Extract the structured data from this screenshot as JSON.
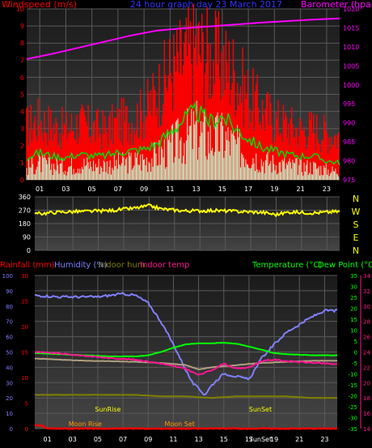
{
  "chart_data": [
    {
      "type": "line",
      "title": "24 hour graph day 23 March 2017",
      "left_axis_label": "Windspeed (m/s)",
      "right_axis_label": "Barometer (hpa)",
      "x_ticks": [
        "01",
        "03",
        "05",
        "07",
        "09",
        "11",
        "13",
        "15",
        "17",
        "19",
        "21",
        "23"
      ],
      "x_range": [
        0,
        24
      ],
      "ylim_left": [
        0,
        10
      ],
      "yticks_left": [
        0,
        1,
        2,
        3,
        4,
        5,
        6,
        7,
        8,
        9,
        10
      ],
      "ylim_right": [
        975,
        1020
      ],
      "yticks_right": [
        975,
        980,
        985,
        990,
        995,
        1000,
        1005,
        1010,
        1015,
        1020
      ],
      "grid": true,
      "series": [
        {
          "name": "Gust",
          "color": "#ff0000",
          "axis": "left",
          "x": [
            0,
            1,
            2,
            3,
            4,
            5,
            6,
            7,
            8,
            9,
            10,
            11,
            12,
            13,
            14,
            15,
            16,
            17,
            18,
            19,
            20,
            21,
            22,
            23,
            24
          ],
          "values": [
            3.2,
            3.6,
            3.2,
            3.0,
            3.4,
            3.1,
            3.0,
            3.4,
            3.6,
            4.0,
            5.2,
            6.5,
            7.2,
            8.0,
            7.4,
            7.0,
            6.4,
            5.0,
            4.2,
            3.6,
            3.3,
            3.0,
            3.1,
            2.8,
            2.6
          ]
        },
        {
          "name": "Average speed",
          "color": "#00dd00",
          "axis": "left",
          "x": [
            0,
            1,
            2,
            3,
            4,
            5,
            6,
            7,
            8,
            9,
            10,
            11,
            12,
            13,
            14,
            15,
            16,
            17,
            18,
            19,
            20,
            21,
            22,
            23,
            24
          ],
          "values": [
            1.3,
            1.6,
            1.4,
            1.3,
            1.5,
            1.4,
            1.4,
            1.6,
            1.7,
            1.8,
            2.1,
            2.8,
            3.5,
            4.0,
            3.4,
            3.7,
            3.0,
            2.4,
            1.9,
            1.7,
            1.5,
            1.4,
            1.4,
            1.1,
            1.0
          ]
        },
        {
          "name": "Speed",
          "color": "#c8f0c8",
          "axis": "left",
          "x": [
            0,
            1,
            2,
            3,
            4,
            5,
            6,
            7,
            8,
            9,
            10,
            11,
            12,
            13,
            14,
            15,
            16,
            17,
            18,
            19,
            20,
            21,
            22,
            23,
            24
          ],
          "values": [
            0.8,
            1.0,
            0.9,
            0.8,
            1.0,
            0.9,
            0.9,
            1.0,
            1.1,
            1.2,
            1.5,
            2.0,
            2.5,
            3.0,
            2.5,
            2.6,
            2.1,
            1.6,
            1.2,
            1.0,
            0.9,
            0.8,
            0.8,
            0.6,
            0.5
          ]
        },
        {
          "name": "Barometer",
          "color": "#ff00ff",
          "axis": "right",
          "x": [
            0,
            2,
            4,
            6,
            8,
            10,
            12,
            14,
            16,
            18,
            20,
            22,
            24
          ],
          "values": [
            1006.8,
            1008.2,
            1009.8,
            1011.4,
            1013.0,
            1014.3,
            1014.9,
            1015.4,
            1015.9,
            1016.4,
            1016.8,
            1017.2,
            1017.5
          ]
        }
      ]
    },
    {
      "type": "line",
      "right_axis_label": "N W S E N",
      "x_range": [
        0,
        24
      ],
      "ylim": [
        0,
        360
      ],
      "yticks": [
        0,
        90,
        180,
        270,
        360
      ],
      "grid": true,
      "series": [
        {
          "name": "Wind direction",
          "color": "#ffff00",
          "x": [
            0,
            2,
            4,
            6,
            8,
            9,
            10,
            12,
            14,
            16,
            18,
            19,
            20,
            22,
            24
          ],
          "values": [
            245,
            258,
            262,
            268,
            285,
            300,
            278,
            265,
            268,
            262,
            255,
            240,
            258,
            252,
            262
          ]
        }
      ]
    },
    {
      "type": "line",
      "legend": [
        "Rainfall (mm)",
        "Humidity (%)",
        "Indoor hum",
        "Indoor temp",
        "Temperature (°C)",
        "Dew Point (°C)"
      ],
      "x_ticks": [
        "01",
        "03",
        "05",
        "07",
        "09",
        "11",
        "13",
        "15",
        "17",
        "19",
        "21",
        "23"
      ],
      "x_range": [
        0,
        24
      ],
      "ylim_humidity": [
        0,
        100
      ],
      "yticks_humidity": [
        0,
        10,
        20,
        30,
        40,
        50,
        60,
        70,
        80,
        90,
        100
      ],
      "ylim_rain": [
        0,
        30
      ],
      "yticks_rain": [
        0,
        5,
        10,
        15,
        20,
        25,
        30
      ],
      "ylim_temp": [
        -35,
        35
      ],
      "yticks_temp": [
        -35,
        -30,
        -25,
        -20,
        -15,
        -10,
        -5,
        0,
        5,
        10,
        15,
        20,
        25,
        30,
        35
      ],
      "ylim_indoor_temp": [
        14,
        34
      ],
      "yticks_indoor_temp": [
        14,
        16,
        18,
        20,
        22,
        24,
        26,
        28,
        30,
        32,
        34
      ],
      "grid": true,
      "annotations": [
        {
          "label": "SunRise",
          "hour": 5.8
        },
        {
          "label": "SunSet",
          "hour": 17.9
        },
        {
          "label": "Moon Rise",
          "hour": 4.0
        },
        {
          "label": "Moon Set",
          "hour": 11.5
        },
        {
          "label": "SunSet",
          "hour": 17.9
        }
      ],
      "series": [
        {
          "name": "Humidity (%)",
          "color": "#8080ff",
          "scale": "humidity",
          "x": [
            0,
            2,
            4,
            5,
            6,
            7,
            8,
            9,
            10,
            11,
            12,
            12.5,
            13,
            13.5,
            14,
            15,
            16,
            17,
            18,
            19,
            20,
            21,
            22,
            23,
            24
          ],
          "values": [
            87,
            86,
            86,
            86,
            87,
            88,
            87,
            82,
            70,
            55,
            38,
            30,
            26,
            22,
            28,
            36,
            34,
            32,
            46,
            55,
            63,
            68,
            73,
            77,
            77
          ]
        },
        {
          "name": "Temperature (°C)",
          "color": "#00ff00",
          "scale": "temp",
          "x": [
            0,
            2,
            4,
            6,
            8,
            9,
            10,
            11,
            12,
            13,
            14,
            15,
            16,
            17,
            18,
            19,
            20,
            22,
            24
          ],
          "values": [
            -0.5,
            -1,
            -1.5,
            -2,
            -2,
            -1.5,
            0,
            2,
            3.5,
            4,
            4,
            4.2,
            3.8,
            2.5,
            1,
            -0.5,
            -1,
            -1.5,
            -1.5
          ]
        },
        {
          "name": "Dew Point (°C)",
          "color": "#b0a080",
          "scale": "temp",
          "x": [
            0,
            2,
            4,
            6,
            8,
            10,
            12,
            13,
            14,
            16,
            18,
            20,
            22,
            24
          ],
          "values": [
            -3,
            -3.5,
            -4,
            -4.2,
            -4.5,
            -5,
            -6,
            -8,
            -7,
            -6,
            -5,
            -4.5,
            -4,
            -4
          ]
        },
        {
          "name": "Indoor temp",
          "color": "#ff1493",
          "scale": "indoor_temp",
          "x": [
            0,
            2,
            4,
            6,
            8,
            10,
            12,
            13,
            14,
            15,
            16,
            17,
            18,
            19,
            20,
            22,
            24
          ],
          "values": [
            24.0,
            23.8,
            23.5,
            23.2,
            23.0,
            22.5,
            21.8,
            21.0,
            21.6,
            22.5,
            21.8,
            22.0,
            22.8,
            23.0,
            22.8,
            22.6,
            22.4
          ]
        },
        {
          "name": "Indoor hum",
          "color": "#808000",
          "scale": "humidity",
          "x": [
            0,
            2,
            4,
            6,
            8,
            10,
            12,
            14,
            16,
            18,
            20,
            22,
            24
          ],
          "values": [
            22,
            22,
            22,
            22,
            22,
            21,
            21,
            20,
            21,
            21,
            21,
            20,
            20
          ]
        },
        {
          "name": "Rainfall (mm)",
          "color": "#ff0000",
          "scale": "rain",
          "x": [
            0,
            0.5,
            1,
            24
          ],
          "values": [
            0.6,
            0.6,
            0,
            0
          ]
        }
      ]
    }
  ]
}
